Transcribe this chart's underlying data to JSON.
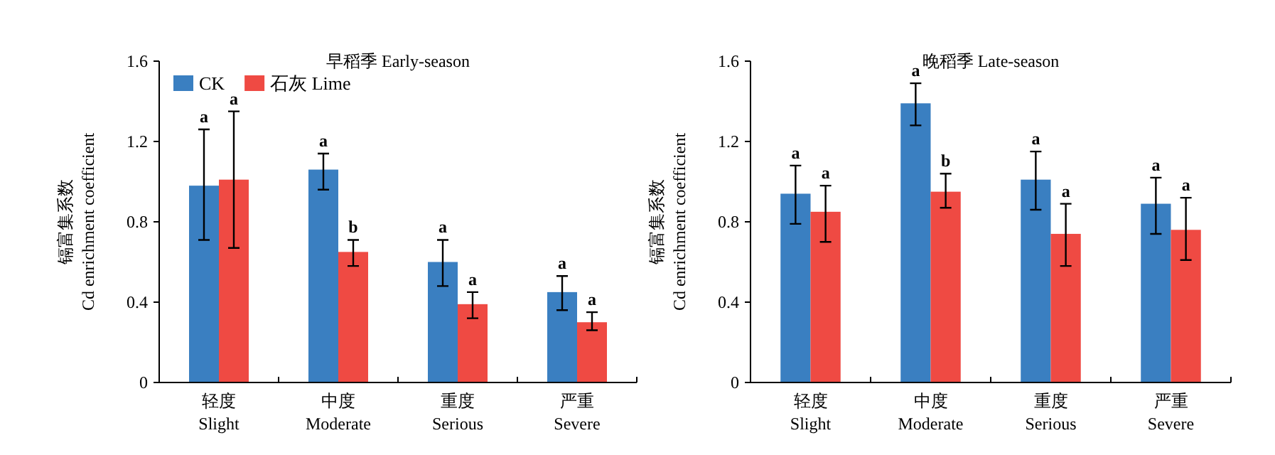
{
  "chart_data": [
    {
      "type": "bar",
      "title": "早稻季 Early-season",
      "ylabel": "镉富集系数\nCd enrichment coefficient",
      "categories": [
        "轻度\nSlight",
        "中度\nModerate",
        "重度\nSerious",
        "严重\nSevere"
      ],
      "series": [
        {
          "name": "CK",
          "color": "#3a7fc1",
          "values": [
            0.98,
            1.06,
            0.6,
            0.45
          ],
          "errors": [
            [
              0.71,
              1.26
            ],
            [
              0.96,
              1.14
            ],
            [
              0.48,
              0.71
            ],
            [
              0.36,
              0.53
            ]
          ]
        },
        {
          "name": "石灰 Lime",
          "color": "#ef4a43",
          "values": [
            1.01,
            0.65,
            0.39,
            0.3
          ],
          "errors": [
            [
              0.67,
              1.35
            ],
            [
              0.58,
              0.71
            ],
            [
              0.32,
              0.45
            ],
            [
              0.26,
              0.35
            ]
          ]
        }
      ],
      "ylim": [
        0,
        1.6
      ],
      "yticks": [
        0,
        0.4,
        0.8,
        1.2,
        1.6
      ],
      "legend": "top left",
      "annotations": [
        "a",
        "a",
        "a",
        "b",
        "a",
        "a",
        "a",
        "a"
      ]
    },
    {
      "type": "bar",
      "title": "晚稻季 Late-season",
      "ylabel": "镉富集系数\nCd enrichment coefficient",
      "categories": [
        "轻度\nSlight",
        "中度\nModerate",
        "重度\nSerious",
        "严重\nSevere"
      ],
      "series": [
        {
          "color": "#3a7fc1",
          "values": [
            0.94,
            1.39,
            1.01,
            0.89
          ],
          "errors": [
            [
              0.79,
              1.08
            ],
            [
              1.28,
              1.49
            ],
            [
              0.86,
              1.15
            ],
            [
              0.74,
              1.02
            ]
          ]
        },
        {
          "color": "#ef4a43",
          "values": [
            0.85,
            0.95,
            0.74,
            0.76
          ],
          "errors": [
            [
              0.7,
              0.98
            ],
            [
              0.87,
              1.04
            ],
            [
              0.58,
              0.89
            ],
            [
              0.61,
              0.92
            ]
          ]
        }
      ],
      "ylim": [
        0,
        1.6
      ],
      "yticks": [
        0,
        0.4,
        0.8,
        1.2,
        1.6
      ],
      "annotations": [
        "a",
        "a",
        "a",
        "b",
        "a",
        "a",
        "a",
        "a"
      ]
    }
  ]
}
